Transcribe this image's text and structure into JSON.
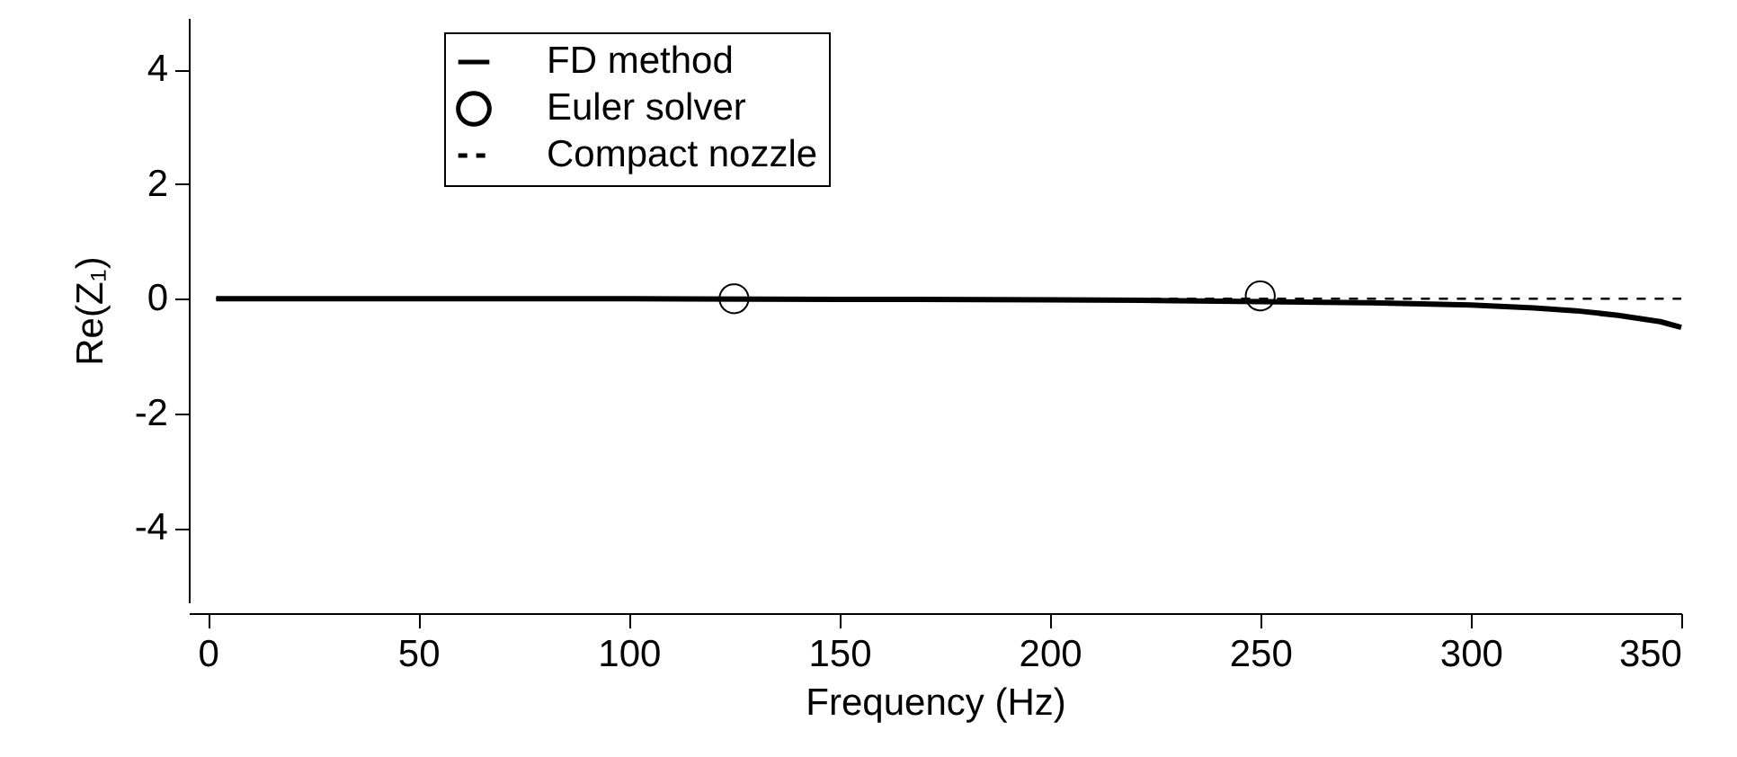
{
  "chart_data": {
    "type": "line",
    "xlabel": "Frequency (Hz)",
    "ylabel": "Re(Z₁)",
    "xlim": [
      -4.5,
      350
    ],
    "xticks": [
      0,
      50,
      100,
      150,
      200,
      250,
      300,
      350
    ],
    "ylim": [
      -5.3,
      4.9
    ],
    "yticks": [
      -4,
      -2,
      0,
      2,
      4
    ],
    "grid": false,
    "legend": "top left",
    "series": [
      {
        "name": "FD method",
        "type": "line",
        "color": "#000000",
        "line_style": "solid",
        "marker": "none",
        "x": [
          2,
          50,
          100,
          150,
          200,
          225,
          250,
          275,
          300,
          315,
          325,
          335,
          345,
          350
        ],
        "values": [
          0,
          0,
          0,
          -0.01,
          -0.02,
          -0.03,
          -0.05,
          -0.07,
          -0.11,
          -0.16,
          -0.21,
          -0.29,
          -0.4,
          -0.5
        ]
      },
      {
        "name": "Euler solver",
        "type": "scatter",
        "color": "#000000",
        "marker": "circle",
        "x": [
          125,
          250
        ],
        "values": [
          0,
          0.05
        ]
      },
      {
        "name": "Compact nozzle",
        "type": "line",
        "color": "#000000",
        "line_style": "dashed",
        "marker": "none",
        "x": [
          2,
          350
        ],
        "values": [
          0,
          0
        ]
      }
    ]
  }
}
